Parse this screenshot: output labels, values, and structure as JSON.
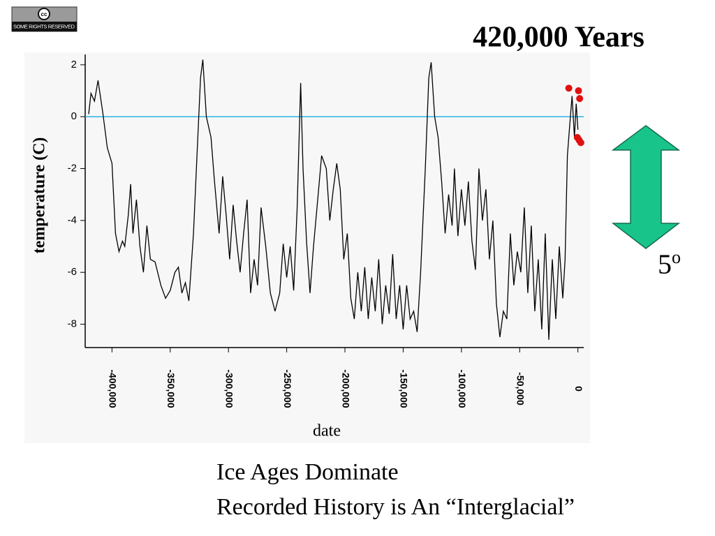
{
  "badge": {
    "symbol": "cc",
    "text": "SOME RIGHTS RESERVED"
  },
  "caption": [
    "Ice Ages Dominate",
    "Recorded History is An “Interglacial”"
  ],
  "arrow_label": {
    "text": "5",
    "sup": "o"
  },
  "chart_data": {
    "type": "line",
    "title": "420,000 Years",
    "xlabel": "date",
    "ylabel": "temperature (C)",
    "xlim": [
      -423000,
      5000
    ],
    "ylim": [
      -8.9,
      2.4
    ],
    "xticks": [
      {
        "value": -400000,
        "label": "-400,000"
      },
      {
        "value": -350000,
        "label": "-350,000"
      },
      {
        "value": -300000,
        "label": "-300,000"
      },
      {
        "value": -250000,
        "label": "-250,000"
      },
      {
        "value": -200000,
        "label": "-200,000"
      },
      {
        "value": -150000,
        "label": "-150,000"
      },
      {
        "value": -100000,
        "label": "-100,000"
      },
      {
        "value": -50000,
        "label": "-50,000"
      },
      0
    ],
    "yticks": [
      2,
      0,
      -2,
      -4,
      -6,
      -8
    ],
    "hline": {
      "value": 0,
      "color": "#29b6e6"
    },
    "series": [
      {
        "color": "#000000",
        "marker": "line",
        "x": [
          -420000,
          -418000,
          -415000,
          -412000,
          -408000,
          -404000,
          -400000,
          -397000,
          -394000,
          -391000,
          -389000,
          -386000,
          -384000,
          -382000,
          -379000,
          -376000,
          -373000,
          -370000,
          -367000,
          -363000,
          -358000,
          -354000,
          -350000,
          -346000,
          -343000,
          -340000,
          -337000,
          -334000,
          -330000,
          -327000,
          -324000,
          -322000,
          -319000,
          -315000,
          -312000,
          -308000,
          -305000,
          -302000,
          -299000,
          -296000,
          -293000,
          -290000,
          -287000,
          -284000,
          -281000,
          -278000,
          -275000,
          -272000,
          -268000,
          -264000,
          -260000,
          -256000,
          -253000,
          -250000,
          -247000,
          -244000,
          -241000,
          -238000,
          -236000,
          -233000,
          -230000,
          -227000,
          -224000,
          -220000,
          -216000,
          -213000,
          -210000,
          -207000,
          -204000,
          -201000,
          -198000,
          -195000,
          -192000,
          -189000,
          -186000,
          -183000,
          -180000,
          -177000,
          -174000,
          -171000,
          -168000,
          -165000,
          -162000,
          -159000,
          -156000,
          -153000,
          -150000,
          -147000,
          -144000,
          -141000,
          -138000,
          -135000,
          -131000,
          -128000,
          -126000,
          -123000,
          -120000,
          -117000,
          -114000,
          -111000,
          -108000,
          -106000,
          -103000,
          -100000,
          -97000,
          -94000,
          -91000,
          -88000,
          -85000,
          -82000,
          -79000,
          -76000,
          -73000,
          -70000,
          -67000,
          -64000,
          -61000,
          -58000,
          -55000,
          -52000,
          -49000,
          -46000,
          -43000,
          -40000,
          -37000,
          -34000,
          -31000,
          -28000,
          -25000,
          -22000,
          -19000,
          -16000,
          -13000,
          -11000,
          -9000,
          -7000,
          -5000,
          -3000,
          -1500,
          0
        ],
        "values": [
          0.1,
          0.9,
          0.6,
          1.4,
          0.2,
          -1.2,
          -1.8,
          -4.5,
          -5.2,
          -4.8,
          -5.0,
          -3.8,
          -2.6,
          -4.5,
          -3.2,
          -5.0,
          -6.0,
          -4.2,
          -5.5,
          -5.6,
          -6.5,
          -7.0,
          -6.7,
          -6.0,
          -5.8,
          -6.8,
          -6.4,
          -7.1,
          -4.5,
          -1.5,
          1.5,
          2.2,
          0.0,
          -0.8,
          -2.5,
          -4.5,
          -2.3,
          -3.8,
          -5.5,
          -3.4,
          -4.8,
          -6.0,
          -4.5,
          -3.2,
          -6.8,
          -5.5,
          -6.5,
          -3.5,
          -5.0,
          -6.8,
          -7.5,
          -6.8,
          -4.9,
          -6.2,
          -5.0,
          -6.7,
          -3.5,
          1.3,
          -2.0,
          -4.8,
          -6.8,
          -5.0,
          -3.5,
          -1.5,
          -2.0,
          -4.0,
          -2.8,
          -1.8,
          -2.8,
          -5.5,
          -4.5,
          -7.0,
          -7.8,
          -6.0,
          -7.5,
          -5.8,
          -7.8,
          -6.2,
          -7.5,
          -5.5,
          -8.0,
          -6.5,
          -7.6,
          -5.3,
          -7.8,
          -6.5,
          -8.2,
          -6.5,
          -7.8,
          -7.5,
          -8.3,
          -6.0,
          -2.0,
          1.5,
          2.1,
          0.0,
          -0.8,
          -2.5,
          -4.5,
          -3.0,
          -4.2,
          -2.0,
          -4.6,
          -2.8,
          -4.2,
          -2.5,
          -4.8,
          -5.9,
          -2.0,
          -4.0,
          -2.8,
          -5.5,
          -4.0,
          -7.2,
          -8.5,
          -7.5,
          -7.8,
          -4.5,
          -6.5,
          -5.2,
          -6.0,
          -3.5,
          -6.8,
          -4.2,
          -7.5,
          -5.5,
          -8.2,
          -4.5,
          -8.6,
          -5.5,
          -7.8,
          -5.0,
          -7.0,
          -5.5,
          -1.5,
          -0.3,
          0.8,
          -0.8,
          0.5,
          -0.5
        ]
      },
      {
        "color": "#e01010",
        "marker": "dot",
        "x": [
          -7800,
          500,
          1500,
          -500,
          1000,
          2500
        ],
        "values": [
          1.1,
          1.0,
          0.7,
          -0.8,
          -0.9,
          -1.0
        ]
      }
    ]
  }
}
